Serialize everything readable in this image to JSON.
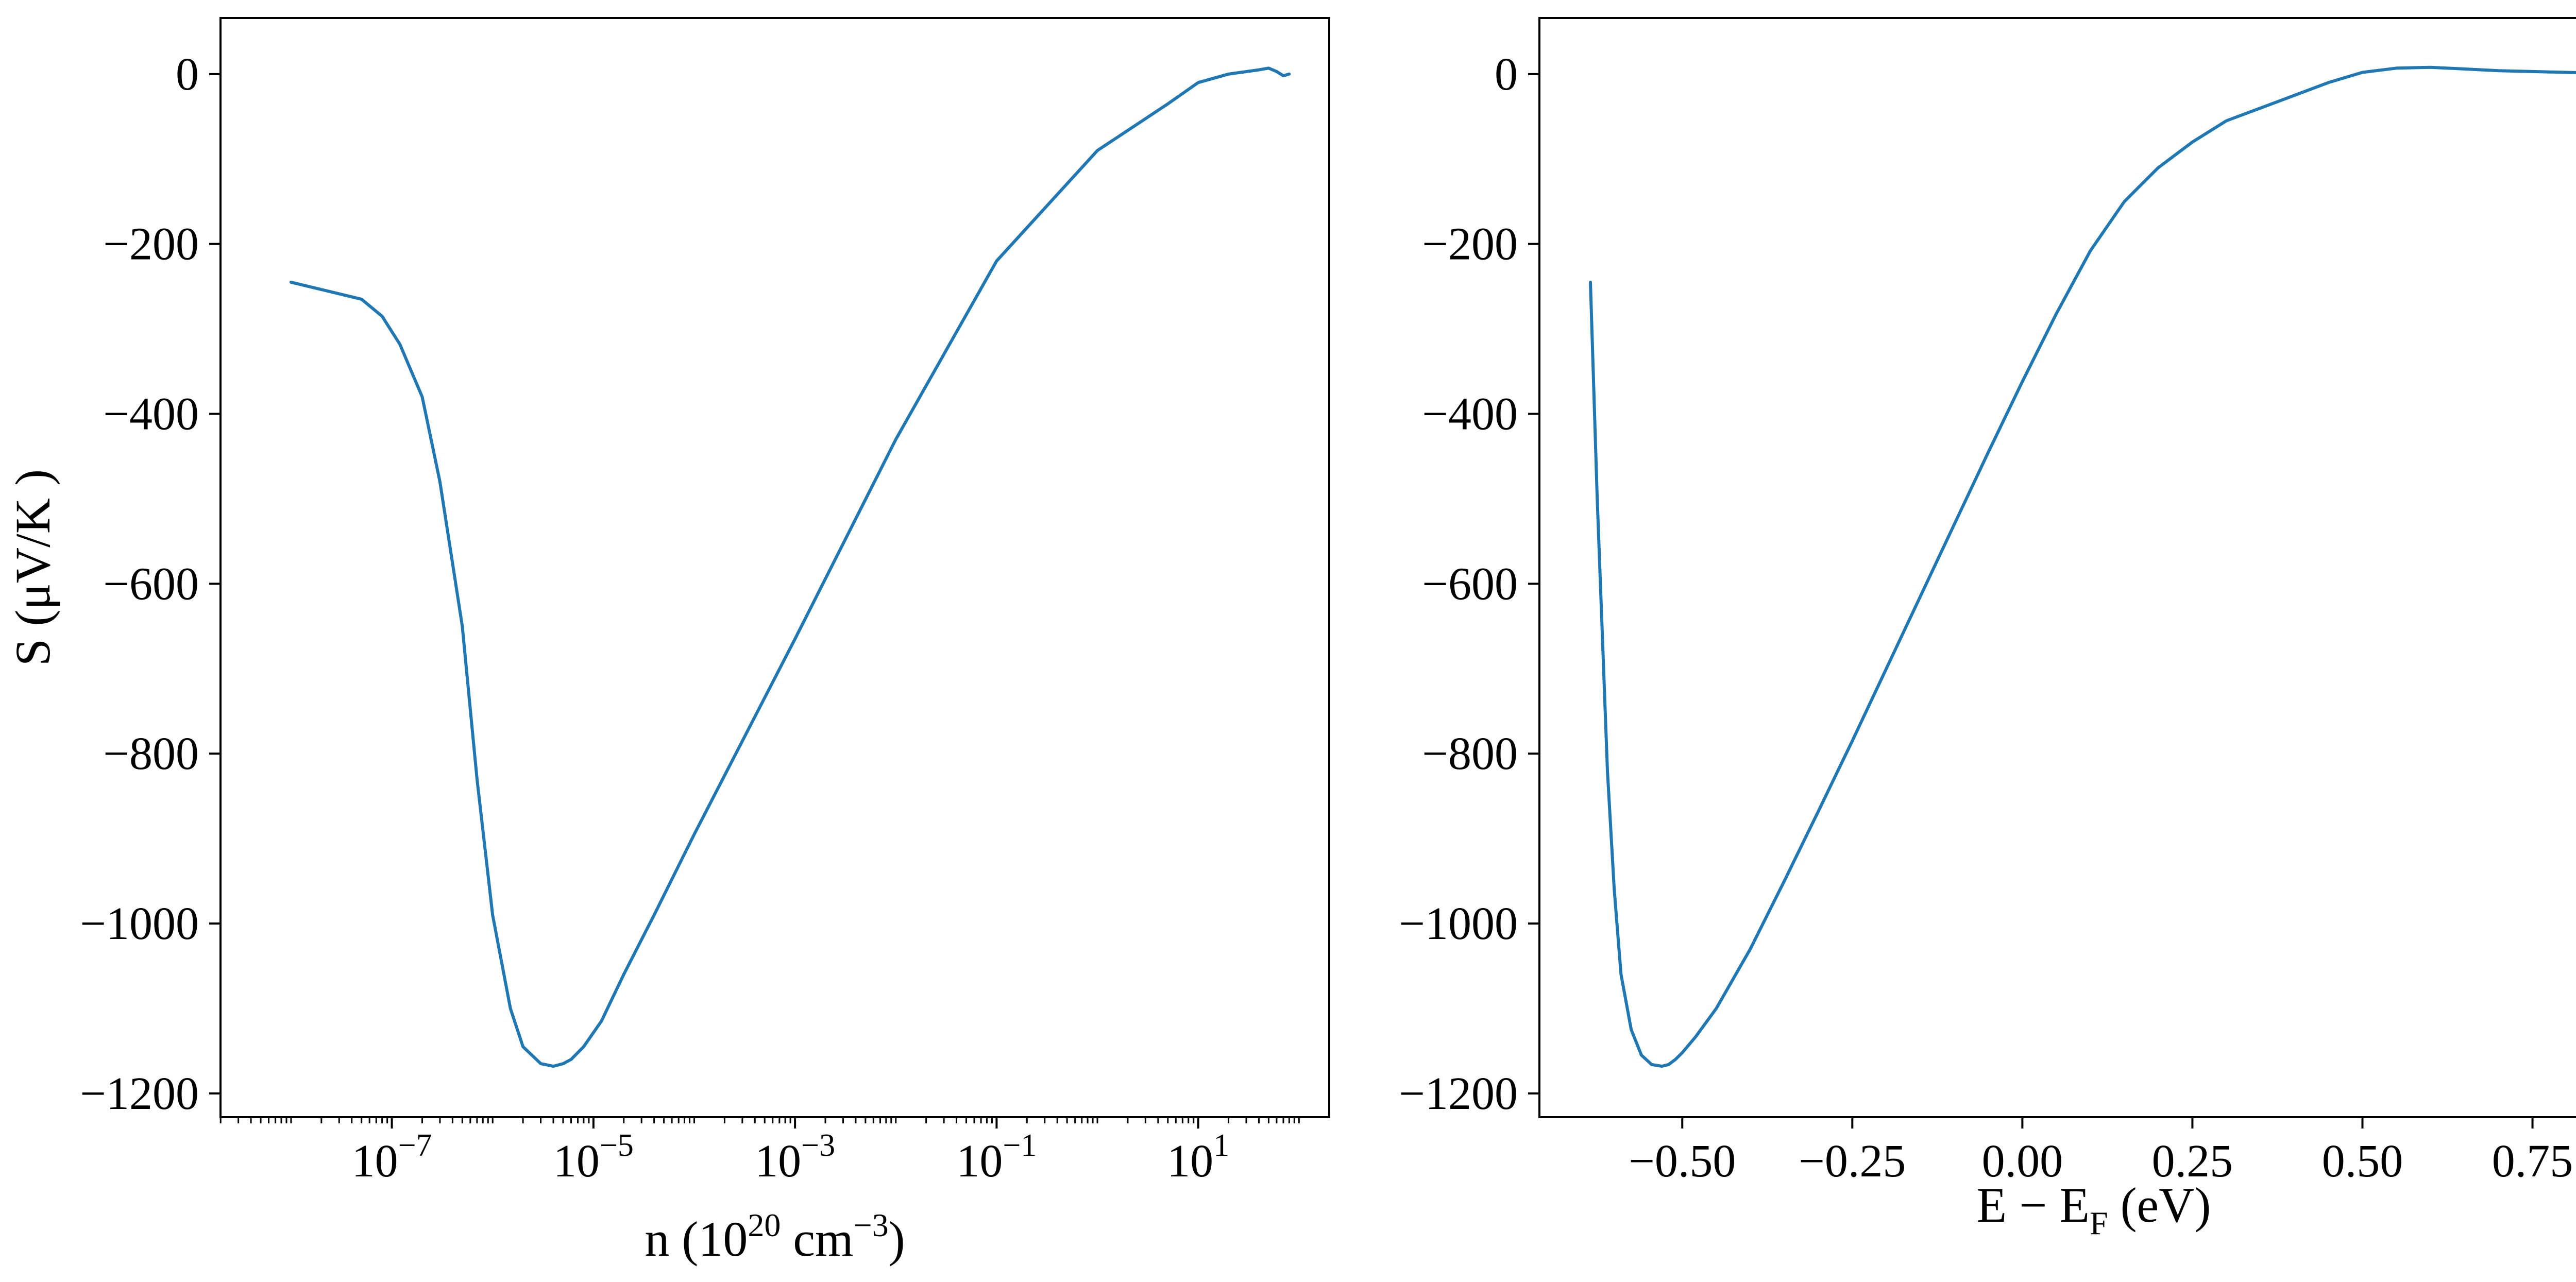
{
  "chart_data": [
    {
      "type": "line",
      "title": "",
      "xscale": "log",
      "xlim_log10": [
        -8.7,
        2.3
      ],
      "ylim": [
        -1228,
        66
      ],
      "grid": false,
      "legend": "none",
      "xlabel": {
        "base": "n (10",
        "exp": "20",
        "mid": " cm",
        "exp2": "−3",
        "tail": ")"
      },
      "ylabel": "S (μV/K )",
      "xticks": [
        {
          "exponent": -7,
          "base": "10",
          "exp": "−7"
        },
        {
          "exponent": -5,
          "base": "10",
          "exp": "−5"
        },
        {
          "exponent": -3,
          "base": "10",
          "exp": "−3"
        },
        {
          "exponent": -1,
          "base": "10",
          "exp": "−1"
        },
        {
          "exponent": 1,
          "base": "10",
          "exp": "1"
        }
      ],
      "yticks": [
        {
          "value": 0,
          "label": "0"
        },
        {
          "value": -200,
          "label": "−200"
        },
        {
          "value": -400,
          "label": "−400"
        },
        {
          "value": -600,
          "label": "−600"
        },
        {
          "value": -800,
          "label": "−800"
        },
        {
          "value": -1000,
          "label": "−1000"
        },
        {
          "value": -1200,
          "label": "−1200"
        }
      ],
      "series": [
        {
          "color": "#1f77b4",
          "x": [
            "1e-8",
            "5e-8",
            "8e-8",
            "1.2e-7",
            "2e-7",
            "3e-7",
            "5e-7",
            "7e-7",
            "1e-6",
            "1.5e-6",
            "2e-6",
            "3e-6",
            "4e-6",
            "5e-6",
            "6e-6",
            "8e-6",
            "1.2e-5",
            "2e-5",
            "4e-5",
            "1e-4",
            "1e-3",
            "1e-2",
            "1e-1",
            "1",
            "5",
            "10",
            "20",
            "40",
            "50",
            "60",
            "70",
            "80"
          ],
          "y": [
            -245,
            -265,
            -285,
            -318,
            -380,
            -480,
            -650,
            -830,
            -990,
            -1100,
            -1145,
            -1165,
            -1168,
            -1165,
            -1160,
            -1145,
            -1115,
            -1060,
            -990,
            -895,
            -665,
            -430,
            -220,
            -90,
            -35,
            -10,
            0,
            5,
            7,
            3,
            -2,
            0
          ]
        }
      ]
    },
    {
      "type": "line",
      "title": "",
      "xlim": [
        -0.71,
        0.92
      ],
      "ylim": [
        -1228,
        66
      ],
      "grid": false,
      "legend": "none",
      "xlabel": {
        "base": "E − E",
        "sub": "F",
        "tail": " (eV)"
      },
      "ylabel": "",
      "xticks": [
        {
          "value": -0.5,
          "label": "−0.50"
        },
        {
          "value": -0.25,
          "label": "−0.25"
        },
        {
          "value": 0.0,
          "label": "0.00"
        },
        {
          "value": 0.25,
          "label": "0.25"
        },
        {
          "value": 0.5,
          "label": "0.50"
        },
        {
          "value": 0.75,
          "label": "0.75"
        }
      ],
      "yticks": [
        {
          "value": 0,
          "label": "0"
        },
        {
          "value": -200,
          "label": "−200"
        },
        {
          "value": -400,
          "label": "−400"
        },
        {
          "value": -600,
          "label": "−600"
        },
        {
          "value": -800,
          "label": "−800"
        },
        {
          "value": -1000,
          "label": "−1000"
        },
        {
          "value": -1200,
          "label": "−1200"
        }
      ],
      "series": [
        {
          "color": "#1f77b4",
          "x": [
            -0.635,
            -0.625,
            -0.61,
            -0.6,
            -0.59,
            -0.575,
            -0.56,
            -0.545,
            -0.53,
            -0.52,
            -0.51,
            -0.5,
            -0.48,
            -0.45,
            -0.4,
            -0.35,
            -0.3,
            -0.25,
            -0.2,
            -0.15,
            -0.1,
            -0.05,
            0.0,
            0.05,
            0.1,
            0.15,
            0.2,
            0.25,
            0.3,
            0.35,
            0.4,
            0.45,
            0.5,
            0.55,
            0.6,
            0.65,
            0.7,
            0.75,
            0.8,
            0.86
          ],
          "y": [
            -245,
            -500,
            -820,
            -960,
            -1060,
            -1125,
            -1155,
            -1166,
            -1168,
            -1166,
            -1160,
            -1152,
            -1133,
            -1100,
            -1030,
            -950,
            -868,
            -785,
            -700,
            -615,
            -530,
            -445,
            -362,
            -282,
            -208,
            -150,
            -110,
            -80,
            -55,
            -40,
            -25,
            -10,
            2,
            7,
            8,
            6,
            4,
            3,
            2,
            1
          ]
        }
      ]
    }
  ]
}
